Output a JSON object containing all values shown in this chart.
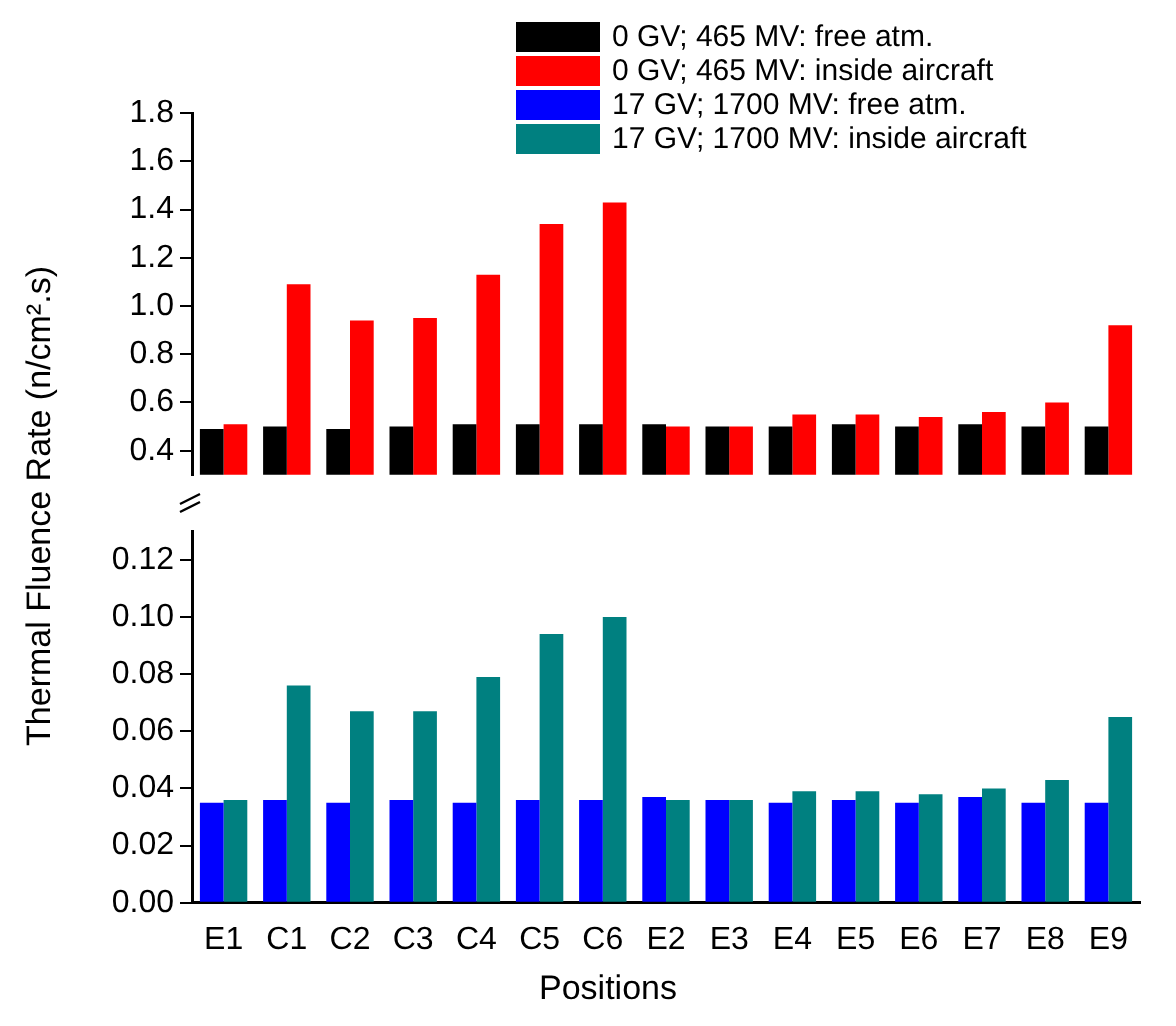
{
  "chart_data": [
    {
      "type": "bar",
      "categories": [
        null,
        null,
        null,
        null,
        null,
        null,
        null,
        null,
        null,
        null,
        null,
        null,
        null,
        null,
        null
      ],
      "series": [
        {
          "name": "0 GV; 465 MV: free atm.",
          "color": "#000000",
          "values": [
            0.49,
            0.5,
            0.49,
            0.5,
            0.51,
            0.51,
            0.51,
            0.51,
            0.5,
            0.5,
            0.51,
            0.5,
            0.51,
            0.5,
            0.5
          ]
        },
        {
          "name": "0 GV; 465 MV: inside aircraft",
          "color": "#ff0000",
          "values": [
            0.51,
            1.09,
            0.94,
            0.95,
            1.13,
            1.34,
            1.43,
            0.5,
            0.5,
            0.55,
            0.55,
            0.54,
            0.56,
            0.6,
            0.92
          ]
        }
      ],
      "ylim": [
        0.3,
        1.8
      ],
      "yticks": [
        0.4,
        0.6,
        0.8,
        {
          "value": 1.0,
          "label": "1.0"
        },
        1.2,
        1.4,
        1.6,
        1.8
      ],
      "tick_labels": "y",
      "legend": "top",
      "grid": false
    },
    {
      "type": "bar",
      "xlabel": "Positions",
      "ylabel": "Thermal Fluence Rate (n/cm².s)",
      "categories": [
        "E1",
        "C1",
        "C2",
        "C3",
        "C4",
        "C5",
        "C6",
        "E2",
        "E3",
        "E4",
        "E5",
        "E6",
        "E7",
        "E8",
        "E9"
      ],
      "series": [
        {
          "name": "17 GV; 1700 MV: free atm.",
          "color": "#0000ff",
          "values": [
            0.035,
            0.036,
            0.035,
            0.036,
            0.035,
            0.036,
            0.036,
            0.037,
            0.036,
            0.035,
            0.036,
            0.035,
            0.037,
            0.035,
            0.035
          ]
        },
        {
          "name": "17 GV; 1700 MV: inside aircraft",
          "color": "#008080",
          "values": [
            0.036,
            0.076,
            0.067,
            0.067,
            0.079,
            0.094,
            0.1,
            0.036,
            0.036,
            0.039,
            0.039,
            0.038,
            0.04,
            0.043,
            0.065
          ]
        }
      ],
      "ylim": [
        0,
        0.13
      ],
      "yticks": [
        {
          "value": 0,
          "label": "0.00"
        },
        0.02,
        0.04,
        0.06,
        0.08,
        {
          "value": 0.1,
          "label": "0.10"
        },
        0.12
      ],
      "legend": "top",
      "grid": false
    }
  ]
}
